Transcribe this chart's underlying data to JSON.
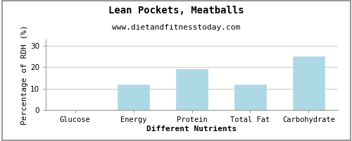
{
  "title": "Lean Pockets, Meatballs",
  "subtitle": "www.dietandfitnesstoday.com",
  "xlabel": "Different Nutrients",
  "ylabel": "Percentage of RDH (%)",
  "categories": [
    "Glucose",
    "Energy",
    "Protein",
    "Total Fat",
    "Carbohydrate"
  ],
  "values": [
    0,
    12,
    19,
    12,
    25
  ],
  "bar_color": "#add8e6",
  "bar_edge_color": "#add8e6",
  "ylim": [
    0,
    33
  ],
  "yticks": [
    0,
    10,
    20,
    30
  ],
  "background_color": "#ffffff",
  "grid_color": "#cccccc",
  "title_fontsize": 10,
  "subtitle_fontsize": 8,
  "axis_label_fontsize": 8,
  "tick_fontsize": 7.5,
  "border_color": "#999999"
}
